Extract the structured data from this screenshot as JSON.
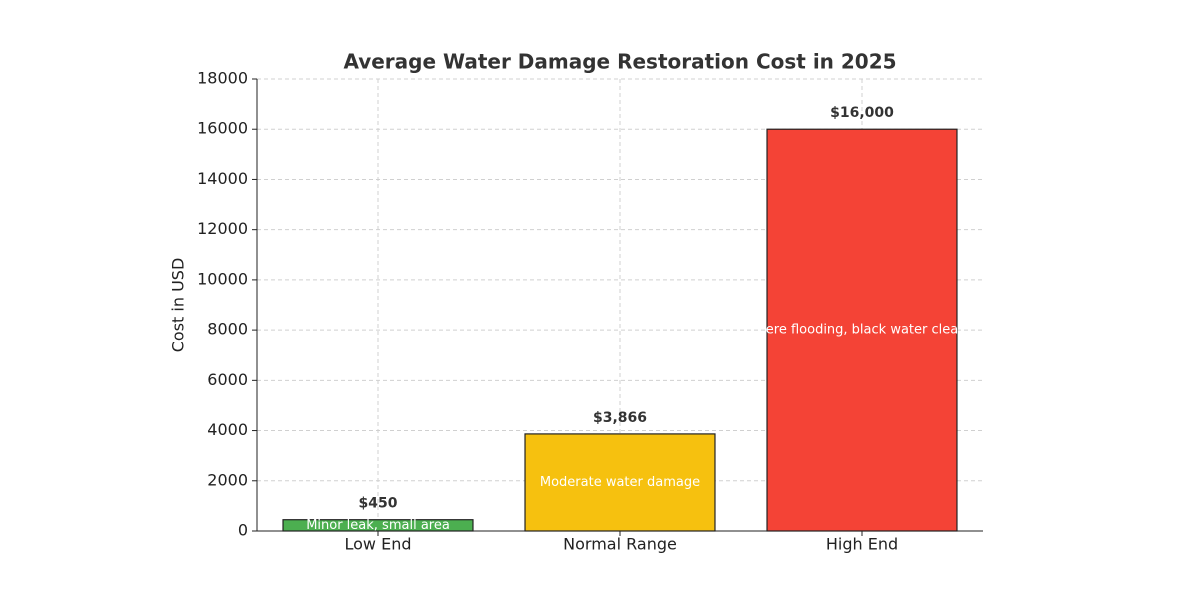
{
  "chart_data": {
    "type": "bar",
    "title": "Average Water Damage Restoration Cost in 2025",
    "y_label": "Cost in USD",
    "categories": [
      "Low End",
      "Normal Range",
      "High End"
    ],
    "values": [
      450,
      3866,
      16000
    ],
    "value_labels": [
      "$450",
      "$3,866",
      "$16,000"
    ],
    "annotations": [
      "Minor leak, small area",
      "Moderate water damage",
      "ere flooding, black water clea"
    ],
    "colors": [
      "#4caf50",
      "#f6c10f",
      "#f44336"
    ],
    "ylim": [
      0,
      18000
    ],
    "yticks": [
      0,
      2000,
      4000,
      6000,
      8000,
      10000,
      12000,
      14000,
      16000,
      18000
    ],
    "grid": true
  }
}
